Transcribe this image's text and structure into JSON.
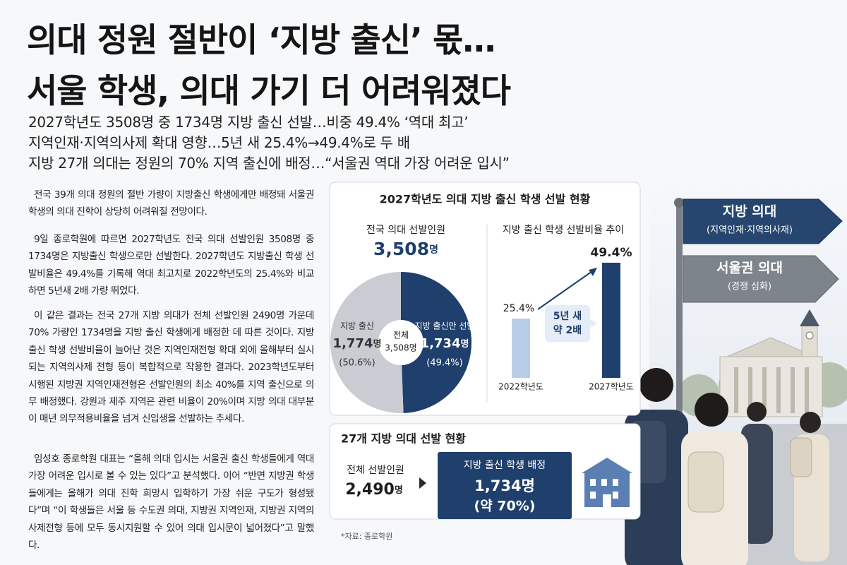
{
  "headline": [
    "의대 정원 절반이 ‘지방 출신’ 몫…",
    "서울 학생, 의대 가기 더 어려워졌다"
  ],
  "subheadlines": [
    "2027학년도 3508명 중 1734명 지방 출신 선발…비중 49.4% ‘역대 최고’",
    "지역인재·지역의사제 확대 영향…5년 새 25.4%→49.4%로 두 배",
    "지방 27개 의대는 정원의 70% 지역 출신에 배정…“서울권 역대 가장 어려운 입시”"
  ],
  "paragraphs": [
    "전국 39개 의대 정원의 절반 가량이 지방출신 학생에게만 배정돼 서울권 학생의 의대 진학이 상당히 어려워질 전망이다.",
    "9일 종로학원에 따르면 2027학년도 전국 의대 선발인원 3508명 중 1734명은 지방출신 학생으로만 선발한다. 2027학년도 지방출신 학생 선발비율은 49.4%를 기록해 역대 최고치로 2022학년도의 25.4%와 비교하면 5년새 2배 가량 뛰었다.",
    "이 같은 결과는 전국 27개 지방 의대가 전체 선발인원 2490명 가운데 70% 가량인 1734명을 지방 출신 학생에게 배정한 데 따른 것이다. 지방 출신 학생 선발비율이 늘어난 것은 지역인재전형 확대 외에 올해부터 실시되는 지역의사제 전형 등이 복합적으로 작용한 결과다. 2023학년도부터 시행된 지방권 지역인재전형은 선발인원의 최소 40%를 지역 출신으로 의무 배정했다. 강원과 제주 지역은 관련 비율이 20%이며 지방 의대 대부분이 매년 의무적용비율을 넘겨 신입생을 선발하는 추세다.",
    "임성호 종로학원 대표는 “올해 의대 입시는 서울권 출신 학생들에게 역대 가장 어려운 입시로 볼 수 있는 있다”고 분석했다. 이어 “반면 지방권 학생들에게는 올해가 의대 진학 희망시 입학하기 가장 쉬운 구도가 형성됐다”며 “이 학생들은 서울 등 수도권 의대, 지방권 지역인재, 지방권 지역의사제전형 등에 모두 동시지원할 수 있어 의대 입시문이 넓어졌다”고 말했다."
  ],
  "infographic": {
    "title": "2027학년도 의대 지방 출신 학생 선발 현황",
    "source": "*자료: 종로학원"
  },
  "chart_data": [
    {
      "type": "pie",
      "title": "전국 의대 선발인원",
      "total_value": "3,508",
      "unit": "명",
      "center_label": "전체",
      "center_value": "3,508명",
      "categories": [
        "지방 출신",
        "지방 출신만 선발"
      ],
      "values": [
        1774,
        1734
      ],
      "value_labels": [
        "1,774",
        "1,734"
      ],
      "percent_labels": [
        "(50.6%)",
        "(49.4%)"
      ],
      "colors": [
        "#c9cdd3",
        "#1f3f6d"
      ]
    },
    {
      "type": "bar",
      "title": "지방 출신 학생 선발비율 추이",
      "categories": [
        "2022학년도",
        "2027학년도"
      ],
      "values": [
        25.4,
        49.4
      ],
      "value_labels": [
        "25.4%",
        "49.4%"
      ],
      "colors": [
        "#b8cde7",
        "#1f3f6d"
      ],
      "annotation": [
        "5년 새",
        "약 2배"
      ]
    }
  ],
  "summary": {
    "title": "27개 지방 의대 선발 현황",
    "total_label": "전체 선발인원",
    "total": "2,490",
    "unit": "명",
    "allocation_label": "지방 출신 학생 배정",
    "allocation": "1,734명",
    "allocation_share": "(약 70%)"
  },
  "signs": [
    {
      "title": "지방 의대",
      "subtitle": "(지역인재·지역의사재)"
    },
    {
      "title": "서울권 의대",
      "subtitle": "(경쟁 심화)"
    }
  ]
}
